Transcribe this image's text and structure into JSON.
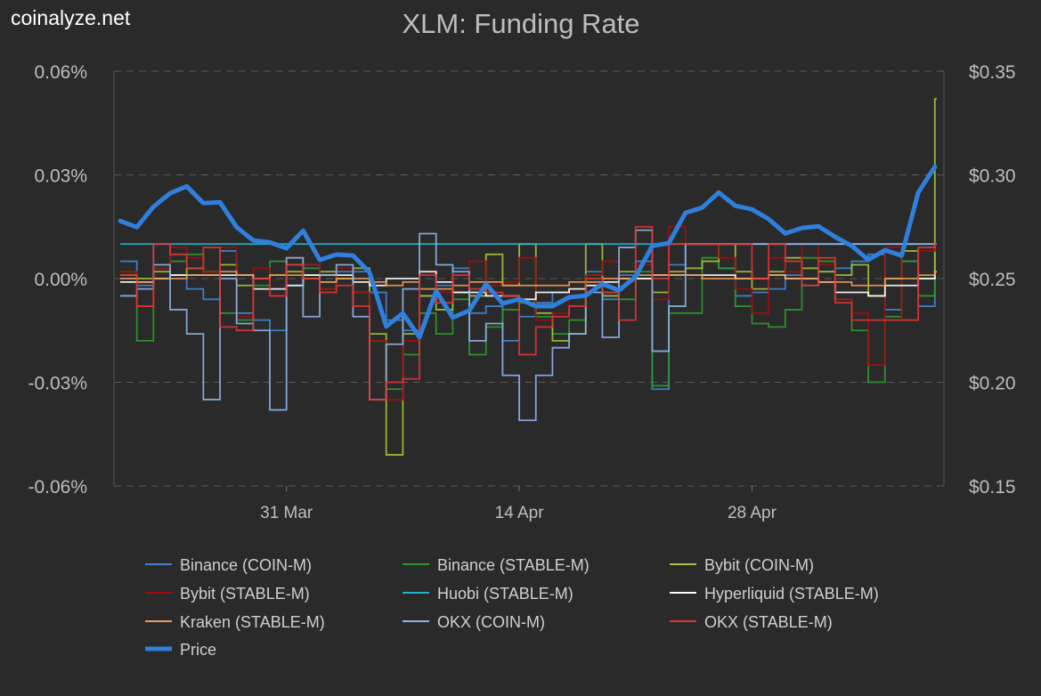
{
  "brand": "coinalyze.net",
  "chart_data": {
    "type": "line",
    "title": "XLM: Funding Rate",
    "left_axis": {
      "ticks": [
        "0.06%",
        "0.03%",
        "0.00%",
        "-0.03%",
        "-0.06%"
      ],
      "range": [
        -0.06,
        0.06
      ],
      "unit": "%"
    },
    "right_axis": {
      "ticks": [
        "$0.35",
        "$0.30",
        "$0.25",
        "$0.20",
        "$0.15"
      ],
      "range": [
        0.15,
        0.35
      ],
      "unit": "$"
    },
    "x_ticks": [
      "31 Mar",
      "14 Apr",
      "28 Apr"
    ],
    "grid": "horizontal dashed",
    "legend_placement": "bottom",
    "x": [
      "21 Mar",
      "22 Mar",
      "23 Mar",
      "24 Mar",
      "25 Mar",
      "26 Mar",
      "27 Mar",
      "28 Mar",
      "29 Mar",
      "30 Mar",
      "31 Mar",
      "1 Apr",
      "2 Apr",
      "3 Apr",
      "4 Apr",
      "5 Apr",
      "6 Apr",
      "7 Apr",
      "8 Apr",
      "9 Apr",
      "10 Apr",
      "11 Apr",
      "12 Apr",
      "13 Apr",
      "14 Apr",
      "15 Apr",
      "16 Apr",
      "17 Apr",
      "18 Apr",
      "19 Apr",
      "20 Apr",
      "21 Apr",
      "22 Apr",
      "23 Apr",
      "24 Apr",
      "25 Apr",
      "26 Apr",
      "27 Apr",
      "28 Apr",
      "29 Apr",
      "30 Apr",
      "1 May",
      "2 May",
      "3 May",
      "4 May",
      "5 May",
      "6 May",
      "7 May",
      "8 May",
      "9 May"
    ],
    "series": [
      {
        "name": "Binance (COIN-M)",
        "color": "#3f86d6",
        "axis": "left",
        "style": "step",
        "values": [
          0.005,
          -0.002,
          0.01,
          0.001,
          -0.003,
          -0.006,
          0.008,
          -0.01,
          -0.012,
          -0.015,
          -0.002,
          0.004,
          -0.001,
          0.002,
          0.002,
          -0.004,
          -0.012,
          -0.015,
          -0.005,
          -0.002,
          0.003,
          -0.01,
          -0.008,
          -0.018,
          -0.011,
          -0.007,
          -0.004,
          -0.003,
          0.002,
          -0.006,
          0.001,
          0.005,
          -0.032,
          0.004,
          0.01,
          0.01,
          0.003,
          -0.005,
          -0.004,
          -0.003,
          0.001,
          -0.002,
          0.002,
          0.003,
          0.005,
          0.007,
          -0.009,
          0.005,
          -0.008,
          0.01
        ]
      },
      {
        "name": "Binance (STABLE-M)",
        "color": "#2e9a2e",
        "axis": "left",
        "style": "step",
        "values": [
          0.002,
          -0.018,
          0.003,
          0.005,
          0.007,
          0.002,
          -0.01,
          -0.012,
          -0.002,
          0.005,
          0.004,
          0.003,
          -0.003,
          0.0,
          -0.004,
          -0.018,
          -0.032,
          -0.022,
          -0.01,
          -0.016,
          -0.006,
          -0.022,
          -0.014,
          -0.009,
          -0.007,
          -0.011,
          -0.016,
          -0.012,
          0.001,
          -0.004,
          -0.006,
          0.002,
          -0.031,
          -0.01,
          -0.01,
          0.006,
          0.003,
          -0.008,
          -0.013,
          -0.014,
          -0.009,
          0.006,
          0.005,
          -0.006,
          -0.015,
          -0.03,
          -0.011,
          0.005,
          -0.005,
          0.01
        ]
      },
      {
        "name": "Bybit (COIN-M)",
        "color": "#a3c43a",
        "axis": "left",
        "style": "step",
        "values": [
          0.001,
          0.0,
          0.002,
          0.001,
          0.003,
          0.002,
          0.004,
          -0.002,
          0.0,
          0.001,
          0.002,
          0.001,
          0.002,
          0.0,
          0.003,
          -0.016,
          -0.051,
          -0.016,
          -0.005,
          -0.009,
          -0.004,
          -0.005,
          0.007,
          -0.002,
          0.01,
          -0.01,
          -0.018,
          -0.016,
          0.01,
          -0.005,
          0.002,
          0.0,
          -0.004,
          0.002,
          0.003,
          0.005,
          0.01,
          0.002,
          -0.003,
          0.002,
          0.006,
          0.003,
          0.002,
          0.001,
          0.004,
          -0.005,
          0.0,
          0.008,
          0.0,
          0.052
        ]
      },
      {
        "name": "Bybit (STABLE-M)",
        "color": "#a00d0d",
        "axis": "left",
        "style": "step",
        "values": [
          0.002,
          -0.008,
          0.003,
          0.009,
          0.006,
          0.002,
          0.009,
          -0.011,
          0.003,
          -0.005,
          0.006,
          0.004,
          -0.003,
          0.003,
          -0.004,
          -0.018,
          -0.035,
          -0.018,
          0.002,
          -0.004,
          0.001,
          0.005,
          -0.002,
          -0.001,
          0.006,
          -0.012,
          -0.01,
          -0.003,
          0.001,
          0.005,
          0.0,
          0.004,
          -0.006,
          0.015,
          0.01,
          0.01,
          0.006,
          -0.003,
          -0.01,
          0.006,
          0.002,
          0.01,
          0.004,
          -0.006,
          -0.01,
          -0.025,
          0.009,
          -0.012,
          0.008,
          0.01
        ]
      },
      {
        "name": "Huobi (STABLE-M)",
        "color": "#22b3c6",
        "axis": "left",
        "style": "step",
        "values": [
          0.01,
          0.01,
          0.01,
          0.01,
          0.01,
          0.01,
          0.01,
          0.01,
          0.01,
          0.01,
          0.01,
          0.01,
          0.01,
          0.01,
          0.01,
          0.01,
          0.01,
          0.01,
          0.01,
          0.01,
          0.01,
          0.01,
          0.01,
          0.01,
          0.01,
          0.01,
          0.01,
          0.01,
          0.01,
          0.01,
          0.01,
          0.01,
          0.01,
          0.01,
          0.01,
          0.01,
          0.01,
          0.01,
          0.01,
          0.01,
          0.01,
          0.01,
          0.01,
          0.01,
          0.01,
          0.01,
          0.01,
          0.01,
          0.01,
          0.01
        ]
      },
      {
        "name": "Hyperliquid (STABLE-M)",
        "color": "#ffffff",
        "axis": "left",
        "style": "step",
        "values": [
          -0.001,
          -0.001,
          0.0,
          0.001,
          0.001,
          0.001,
          0.001,
          0.001,
          -0.003,
          -0.003,
          -0.002,
          0.001,
          0.001,
          0.001,
          -0.001,
          -0.002,
          0.0,
          0.0,
          0.002,
          -0.001,
          -0.004,
          -0.004,
          -0.005,
          -0.005,
          -0.006,
          -0.004,
          -0.004,
          -0.003,
          -0.002,
          -0.001,
          0.0,
          0.0,
          0.001,
          0.001,
          0.001,
          0.001,
          0.001,
          0.0,
          0.0,
          0.001,
          0.0,
          0.0,
          -0.001,
          -0.004,
          -0.004,
          -0.005,
          -0.002,
          -0.002,
          0.0,
          0.002
        ]
      },
      {
        "name": "Kraken (STABLE-M)",
        "color": "#f19a55",
        "axis": "left",
        "style": "step",
        "values": [
          0.0,
          -0.001,
          0.0,
          0.0,
          0.001,
          0.001,
          0.002,
          0.001,
          0.0,
          0.001,
          0.001,
          0.0,
          -0.001,
          0.0,
          0.0,
          -0.001,
          -0.002,
          -0.001,
          -0.003,
          -0.003,
          -0.002,
          -0.001,
          -0.001,
          -0.002,
          -0.002,
          -0.002,
          -0.002,
          -0.001,
          -0.001,
          0.0,
          0.0,
          0.001,
          0.001,
          0.001,
          0.001,
          0.0,
          0.0,
          0.0,
          0.0,
          0.001,
          0.0,
          0.0,
          -0.001,
          -0.001,
          -0.002,
          -0.002,
          0.0,
          0.0,
          0.001,
          0.002
        ]
      },
      {
        "name": "OKX (COIN-M)",
        "color": "#8fb3ea",
        "axis": "left",
        "style": "step",
        "values": [
          -0.005,
          -0.003,
          0.004,
          -0.009,
          -0.016,
          -0.035,
          0.0,
          -0.013,
          -0.015,
          -0.038,
          0.006,
          -0.011,
          0.001,
          0.004,
          -0.011,
          -0.035,
          -0.019,
          -0.003,
          0.013,
          0.004,
          0.002,
          -0.018,
          -0.013,
          -0.028,
          -0.041,
          -0.028,
          -0.02,
          -0.016,
          -0.004,
          -0.017,
          0.009,
          0.014,
          -0.021,
          -0.008,
          0.01,
          0.01,
          0.01,
          0.01,
          0.01,
          0.01,
          0.01,
          0.01,
          0.01,
          0.01,
          0.01,
          0.01,
          0.01,
          0.01,
          0.01,
          0.01
        ]
      },
      {
        "name": "OKX (STABLE-M)",
        "color": "#e03434",
        "axis": "left",
        "style": "step",
        "values": [
          0.001,
          -0.008,
          0.01,
          0.007,
          0.003,
          0.009,
          -0.014,
          -0.015,
          0.0,
          -0.005,
          0.004,
          0.0,
          -0.004,
          -0.002,
          -0.008,
          -0.035,
          -0.03,
          -0.029,
          0.001,
          -0.007,
          0.001,
          -0.003,
          -0.004,
          -0.005,
          -0.022,
          -0.014,
          -0.011,
          -0.008,
          0.0,
          -0.004,
          -0.012,
          0.015,
          0.0,
          0.01,
          0.01,
          0.01,
          0.01,
          0.01,
          0.0,
          0.01,
          0.005,
          -0.002,
          0.006,
          -0.007,
          -0.012,
          -0.012,
          -0.012,
          -0.012,
          0.009,
          0.01
        ]
      },
      {
        "name": "Price",
        "color": "#2f80dd",
        "axis": "right",
        "style": "line",
        "values": [
          0.2778,
          0.2748,
          0.2847,
          0.2911,
          0.2945,
          0.2864,
          0.2868,
          0.2748,
          0.2684,
          0.2675,
          0.2646,
          0.2731,
          0.259,
          0.2616,
          0.2611,
          0.253,
          0.2269,
          0.2333,
          0.2217,
          0.244,
          0.2312,
          0.2346,
          0.2474,
          0.238,
          0.24,
          0.2367,
          0.2367,
          0.241,
          0.2418,
          0.2474,
          0.2444,
          0.2509,
          0.2658,
          0.2671,
          0.2817,
          0.2842,
          0.2915,
          0.2851,
          0.2834,
          0.2787,
          0.2718,
          0.2744,
          0.2752,
          0.2701,
          0.2658,
          0.259,
          0.2637,
          0.2611,
          0.2915,
          0.3039
        ]
      }
    ]
  }
}
